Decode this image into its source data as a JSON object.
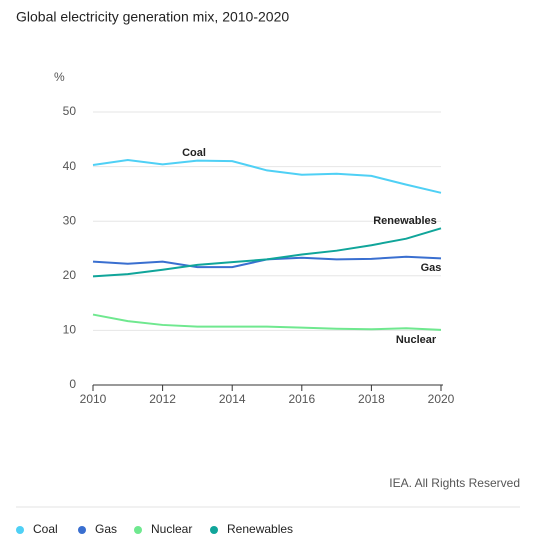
{
  "chart_data": {
    "type": "line",
    "title": "Global electricity generation mix, 2010-2020",
    "y_label": "%",
    "source": "IEA. All Rights Reserved",
    "x": [
      2010,
      2011,
      2012,
      2013,
      2014,
      2015,
      2016,
      2017,
      2018,
      2019,
      2020
    ],
    "xlim": [
      2010,
      2020
    ],
    "xticks": [
      2010,
      2012,
      2014,
      2016,
      2018,
      2020
    ],
    "ylim": [
      0,
      50
    ],
    "yticks": [
      0,
      10,
      20,
      30,
      40,
      50
    ],
    "grid": true,
    "legend": "bottom",
    "series": [
      {
        "name": "Coal",
        "color": "#4fd0f5",
        "values": [
          40.3,
          41.2,
          40.4,
          41.1,
          41.0,
          39.3,
          38.5,
          38.7,
          38.3,
          36.7,
          35.2
        ]
      },
      {
        "name": "Gas",
        "color": "#3a6fd0",
        "values": [
          22.6,
          22.2,
          22.6,
          21.6,
          21.6,
          23.0,
          23.3,
          23.0,
          23.1,
          23.5,
          23.2
        ]
      },
      {
        "name": "Nuclear",
        "color": "#6fe88f",
        "values": [
          12.9,
          11.7,
          11.0,
          10.7,
          10.7,
          10.7,
          10.5,
          10.3,
          10.2,
          10.4,
          10.1
        ]
      },
      {
        "name": "Renewables",
        "color": "#10a59a",
        "values": [
          19.9,
          20.3,
          21.1,
          22.0,
          22.5,
          23.0,
          23.9,
          24.6,
          25.6,
          26.8,
          28.7
        ]
      }
    ]
  }
}
